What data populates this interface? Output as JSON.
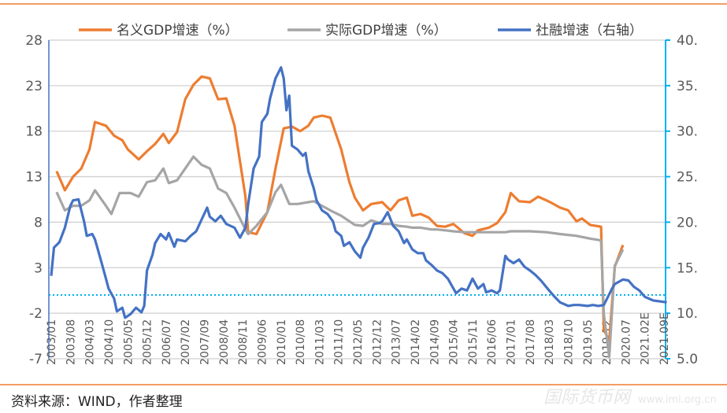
{
  "chart_data": {
    "type": "line",
    "title": "",
    "x_unit": "month index since 2003/01",
    "x_range": [
      0,
      225
    ],
    "x_tick_labels": [
      "2003/01",
      "2003/08",
      "2004/03",
      "2004/10",
      "2005/05",
      "2005/12",
      "2006/07",
      "2007/02",
      "2007/09",
      "2008/04",
      "2008/11",
      "2009/06",
      "2010/01",
      "2010/08",
      "2011/03",
      "2011/10",
      "2012/05",
      "2012/12",
      "2013/07",
      "2014/02",
      "2014/09",
      "2015/04",
      "2015/11",
      "2016/06",
      "2017/01",
      "2017/08",
      "2018/03",
      "2018/10",
      "2019.05",
      "2019.12",
      "2020.07",
      "2021.02E",
      "2021.09E"
    ],
    "x_tick_step_months": 7,
    "y_left": {
      "range": [
        -7,
        28
      ],
      "ticks": [
        "28",
        "23",
        "18",
        "13",
        "8",
        "3",
        "-2",
        "-7"
      ]
    },
    "y_right": {
      "range": [
        5,
        40
      ],
      "ticks": [
        "40.",
        "35.",
        "30.",
        "25.",
        "20.",
        "15.",
        "10.",
        "5.0"
      ]
    },
    "grid": true,
    "zero_line_left": 0,
    "legend_position": "top",
    "series": [
      {
        "name": "名义GDP增速（%）",
        "axis": "left",
        "color": "#ed7d31",
        "points": [
          [
            2,
            13.6
          ],
          [
            5,
            11.5
          ],
          [
            8,
            13
          ],
          [
            11,
            13.9
          ],
          [
            14,
            16
          ],
          [
            16,
            19
          ],
          [
            20,
            18.6
          ],
          [
            23,
            17.5
          ],
          [
            26,
            17
          ],
          [
            28,
            16
          ],
          [
            32,
            14.9
          ],
          [
            35,
            15.8
          ],
          [
            38,
            16.6
          ],
          [
            41,
            17.7
          ],
          [
            43,
            16.7
          ],
          [
            46,
            17.9
          ],
          [
            49,
            21.5
          ],
          [
            52,
            23.1
          ],
          [
            55,
            24
          ],
          [
            58,
            23.8
          ],
          [
            61,
            21.5
          ],
          [
            64,
            21.6
          ],
          [
            67,
            18.6
          ],
          [
            71,
            10.8
          ],
          [
            72,
            6.9
          ],
          [
            75,
            6.7
          ],
          [
            79,
            9.1
          ],
          [
            82,
            13.9
          ],
          [
            85,
            18.3
          ],
          [
            88,
            18.5
          ],
          [
            91,
            18
          ],
          [
            94,
            18.6
          ],
          [
            96,
            19.5
          ],
          [
            99,
            19.7
          ],
          [
            102,
            19.5
          ],
          [
            106,
            16
          ],
          [
            109,
            12.4
          ],
          [
            111,
            10.7
          ],
          [
            114,
            9.3
          ],
          [
            117,
            10
          ],
          [
            121,
            10.2
          ],
          [
            124,
            9.3
          ],
          [
            127,
            10.4
          ],
          [
            130,
            10.7
          ],
          [
            132,
            8.7
          ],
          [
            135,
            8.9
          ],
          [
            138,
            8.5
          ],
          [
            141,
            7.6
          ],
          [
            144,
            7.5
          ],
          [
            147,
            7.8
          ],
          [
            151,
            6.8
          ],
          [
            154,
            6.5
          ],
          [
            156,
            7.1
          ],
          [
            160,
            7.4
          ],
          [
            163,
            7.9
          ],
          [
            166,
            9.1
          ],
          [
            168,
            11.2
          ],
          [
            171,
            10.3
          ],
          [
            175,
            10.2
          ],
          [
            178,
            10.8
          ],
          [
            181,
            10.4
          ],
          [
            183,
            10.1
          ],
          [
            186,
            9.6
          ],
          [
            189,
            9.3
          ],
          [
            192,
            8.1
          ],
          [
            194,
            8.4
          ],
          [
            197,
            7.7
          ],
          [
            201,
            7.5
          ],
          [
            202,
            -3.8
          ],
          [
            204,
            -5
          ],
          [
            206,
            3.1
          ],
          [
            209,
            5.5
          ]
        ]
      },
      {
        "name": "实际GDP增速（%）",
        "axis": "left",
        "color": "#a5a5a5",
        "points": [
          [
            2,
            11.3
          ],
          [
            5,
            9.3
          ],
          [
            8,
            9.8
          ],
          [
            11,
            9.8
          ],
          [
            14,
            10.4
          ],
          [
            16,
            11.5
          ],
          [
            20,
            9.8
          ],
          [
            22,
            8.9
          ],
          [
            25,
            11.2
          ],
          [
            29,
            11.2
          ],
          [
            32,
            10.8
          ],
          [
            35,
            12.4
          ],
          [
            38,
            12.6
          ],
          [
            41,
            13.9
          ],
          [
            43,
            12.3
          ],
          [
            46,
            12.6
          ],
          [
            49,
            13.9
          ],
          [
            52,
            15.2
          ],
          [
            55,
            14.3
          ],
          [
            58,
            13.9
          ],
          [
            61,
            11.7
          ],
          [
            64,
            11.2
          ],
          [
            67,
            9.6
          ],
          [
            71,
            7.2
          ],
          [
            72,
            6.7
          ],
          [
            75,
            7.6
          ],
          [
            79,
            9.1
          ],
          [
            82,
            11.3
          ],
          [
            84,
            12.1
          ],
          [
            87,
            10
          ],
          [
            90,
            10
          ],
          [
            94,
            10.2
          ],
          [
            96,
            10.3
          ],
          [
            99,
            9.8
          ],
          [
            102,
            9.3
          ],
          [
            106,
            8.7
          ],
          [
            109,
            8.1
          ],
          [
            111,
            7.7
          ],
          [
            114,
            7.6
          ],
          [
            117,
            8.2
          ],
          [
            121,
            7.8
          ],
          [
            124,
            7.8
          ],
          [
            127,
            7.6
          ],
          [
            130,
            7.5
          ],
          [
            132,
            7.4
          ],
          [
            135,
            7.4
          ],
          [
            139,
            7.2
          ],
          [
            141,
            7.2
          ],
          [
            144,
            7.1
          ],
          [
            147,
            7
          ],
          [
            151,
            6.9
          ],
          [
            166,
            6.9
          ],
          [
            168,
            7
          ],
          [
            175,
            7
          ],
          [
            181,
            6.9
          ],
          [
            186,
            6.7
          ],
          [
            192,
            6.5
          ],
          [
            197,
            6.2
          ],
          [
            201,
            6
          ],
          [
            202,
            -2.1
          ],
          [
            204,
            -6.8
          ],
          [
            206,
            3.2
          ],
          [
            209,
            5
          ]
        ]
      },
      {
        "name": "社融增速（右轴）",
        "axis": "right",
        "color": "#4472c4",
        "points": [
          [
            0,
            14.1
          ],
          [
            1,
            17.2
          ],
          [
            3,
            17.8
          ],
          [
            5,
            19.4
          ],
          [
            7,
            21.8
          ],
          [
            8,
            22.4
          ],
          [
            10,
            22.5
          ],
          [
            12,
            20.1
          ],
          [
            13,
            18.5
          ],
          [
            15,
            18.7
          ],
          [
            16,
            18.1
          ],
          [
            18,
            16
          ],
          [
            20,
            13.8
          ],
          [
            21,
            12.7
          ],
          [
            23,
            11.6
          ],
          [
            24,
            10.2
          ],
          [
            26,
            10.6
          ],
          [
            27,
            9.5
          ],
          [
            29,
            9.9
          ],
          [
            31,
            10.6
          ],
          [
            33,
            10.1
          ],
          [
            34,
            10.8
          ],
          [
            35,
            14.7
          ],
          [
            37,
            16.4
          ],
          [
            38,
            17.7
          ],
          [
            40,
            18.7
          ],
          [
            42,
            18.1
          ],
          [
            43,
            18.8
          ],
          [
            45,
            17.3
          ],
          [
            46,
            18.1
          ],
          [
            49,
            17.9
          ],
          [
            51,
            18.5
          ],
          [
            53,
            19
          ],
          [
            55,
            20.3
          ],
          [
            57,
            21.6
          ],
          [
            58,
            20.6
          ],
          [
            60,
            20.1
          ],
          [
            62,
            20.7
          ],
          [
            64,
            19.8
          ],
          [
            67,
            19.4
          ],
          [
            69,
            18.3
          ],
          [
            71,
            19.4
          ],
          [
            72,
            22
          ],
          [
            74,
            25.9
          ],
          [
            76,
            27.2
          ],
          [
            77,
            31
          ],
          [
            79,
            31.9
          ],
          [
            80,
            33.6
          ],
          [
            82,
            35.8
          ],
          [
            84,
            37
          ],
          [
            85,
            35.8
          ],
          [
            86,
            32.3
          ],
          [
            87,
            33.9
          ],
          [
            88,
            28.4
          ],
          [
            90,
            28
          ],
          [
            92,
            27.3
          ],
          [
            93,
            27.6
          ],
          [
            94,
            25.6
          ],
          [
            96,
            23.7
          ],
          [
            97,
            22.4
          ],
          [
            99,
            21.3
          ],
          [
            101,
            20.9
          ],
          [
            103,
            20.1
          ],
          [
            104,
            19
          ],
          [
            106,
            18.5
          ],
          [
            107,
            17.4
          ],
          [
            109,
            17.8
          ],
          [
            111,
            16.8
          ],
          [
            113,
            16.1
          ],
          [
            114,
            17.2
          ],
          [
            116,
            18.3
          ],
          [
            118,
            19.8
          ],
          [
            120,
            19.9
          ],
          [
            121,
            20.1
          ],
          [
            123,
            21.1
          ],
          [
            125,
            19.6
          ],
          [
            127,
            19
          ],
          [
            129,
            17.7
          ],
          [
            130,
            18.1
          ],
          [
            132,
            17
          ],
          [
            134,
            16.6
          ],
          [
            136,
            16.6
          ],
          [
            137,
            15.8
          ],
          [
            139,
            15.3
          ],
          [
            141,
            14.7
          ],
          [
            143,
            14.4
          ],
          [
            145,
            13.8
          ],
          [
            148,
            12.2
          ],
          [
            150,
            12.7
          ],
          [
            152,
            12.5
          ],
          [
            154,
            13.8
          ],
          [
            156,
            12.7
          ],
          [
            158,
            13.2
          ],
          [
            159,
            12.3
          ],
          [
            161,
            12.5
          ],
          [
            163,
            12.2
          ],
          [
            164,
            12.5
          ],
          [
            166,
            16.3
          ],
          [
            167,
            15.9
          ],
          [
            169,
            15.5
          ],
          [
            171,
            15.9
          ],
          [
            173,
            15.1
          ],
          [
            175,
            14.7
          ],
          [
            177,
            14.2
          ],
          [
            179,
            13.6
          ],
          [
            182,
            12.5
          ],
          [
            184,
            11.8
          ],
          [
            186,
            11.2
          ],
          [
            189,
            10.8
          ],
          [
            191,
            10.9
          ],
          [
            193,
            10.9
          ],
          [
            196,
            10.8
          ],
          [
            198,
            10.9
          ],
          [
            200,
            10.8
          ],
          [
            202,
            10.9
          ],
          [
            203,
            11.5
          ],
          [
            205,
            12.7
          ],
          [
            206,
            13.2
          ],
          [
            209,
            13.7
          ],
          [
            211,
            13.6
          ],
          [
            213,
            12.9
          ],
          [
            215,
            12.5
          ],
          [
            217,
            11.8
          ],
          [
            220,
            11.4
          ],
          [
            225,
            11.2
          ]
        ]
      }
    ]
  },
  "source_note": "资料来源：WIND，作者整理",
  "watermark": "国际货币网 www.imi.org.cn"
}
